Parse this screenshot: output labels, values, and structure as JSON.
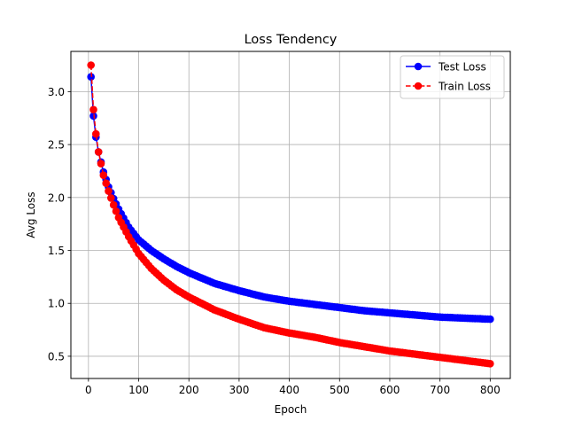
{
  "chart_data": {
    "type": "line",
    "title": "Loss Tendency",
    "xlabel": "Epoch",
    "ylabel": "Avg Loss",
    "xlim": [
      -35,
      840
    ],
    "ylim": [
      0.29,
      3.38
    ],
    "xticks": [
      0,
      100,
      200,
      300,
      400,
      500,
      600,
      700,
      800
    ],
    "yticks": [
      0.5,
      1.0,
      1.5,
      2.0,
      2.5,
      3.0
    ],
    "xtick_labels": [
      "0",
      "100",
      "200",
      "300",
      "400",
      "500",
      "600",
      "700",
      "800"
    ],
    "ytick_labels": [
      "0.5",
      "1.0",
      "1.5",
      "2.0",
      "2.5",
      "3.0"
    ],
    "grid": true,
    "legend_position": "top-right",
    "series": [
      {
        "name": "Test Loss",
        "color": "#0000ff",
        "linestyle": "solid",
        "marker": "circle",
        "x": [
          5,
          10,
          15,
          20,
          30,
          40,
          50,
          60,
          80,
          100,
          125,
          150,
          175,
          200,
          250,
          300,
          350,
          400,
          450,
          500,
          550,
          600,
          650,
          700,
          750,
          800
        ],
        "y": [
          3.14,
          2.77,
          2.57,
          2.43,
          2.24,
          2.1,
          1.99,
          1.89,
          1.72,
          1.6,
          1.5,
          1.42,
          1.35,
          1.29,
          1.19,
          1.12,
          1.06,
          1.02,
          0.99,
          0.96,
          0.93,
          0.91,
          0.89,
          0.87,
          0.86,
          0.85
        ]
      },
      {
        "name": "Train Loss",
        "color": "#ff0000",
        "linestyle": "dashed",
        "marker": "circle",
        "x": [
          5,
          10,
          15,
          20,
          30,
          40,
          50,
          60,
          80,
          100,
          125,
          150,
          175,
          200,
          250,
          300,
          350,
          400,
          450,
          500,
          550,
          600,
          650,
          700,
          750,
          800
        ],
        "y": [
          3.25,
          2.83,
          2.6,
          2.43,
          2.21,
          2.06,
          1.93,
          1.81,
          1.63,
          1.47,
          1.33,
          1.22,
          1.13,
          1.06,
          0.94,
          0.85,
          0.77,
          0.72,
          0.68,
          0.63,
          0.59,
          0.55,
          0.52,
          0.49,
          0.46,
          0.43
        ]
      }
    ]
  }
}
